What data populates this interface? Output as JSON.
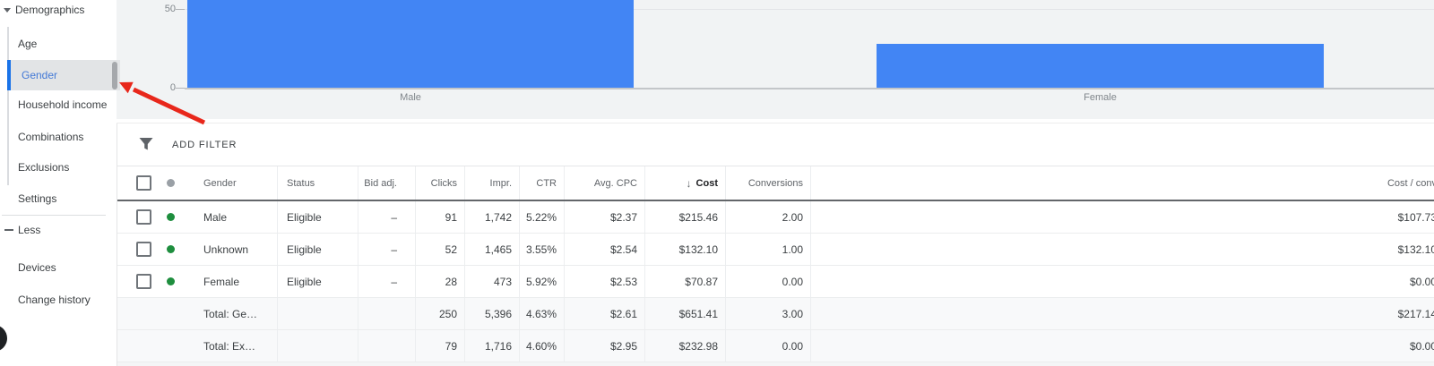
{
  "sidebar": {
    "section_label": "Demographics",
    "items": [
      {
        "label": "Age",
        "selected": false
      },
      {
        "label": "Gender",
        "selected": true
      },
      {
        "label": "Household income",
        "selected": false
      },
      {
        "label": "Combinations",
        "selected": false
      },
      {
        "label": "Exclusions",
        "selected": false
      },
      {
        "label": "Settings",
        "selected": false
      }
    ],
    "collapse_label": "Less",
    "extra_items": [
      {
        "label": "Devices"
      },
      {
        "label": "Change history"
      }
    ]
  },
  "chart_data": {
    "type": "bar",
    "title": "",
    "xlabel": "",
    "ylabel": "",
    "categories": [
      "Male",
      "Female"
    ],
    "values": [
      91,
      28
    ],
    "y_ticks_visible": [
      50,
      0
    ],
    "ylim_visible": [
      0,
      69
    ],
    "grid": true,
    "bar_color": "#4285f4",
    "note_male_bar_clipped_at_top": true
  },
  "filter_bar": {
    "label": "ADD FILTER",
    "icon": "filter-funnel-icon"
  },
  "table": {
    "columns": [
      {
        "id": "select",
        "label": ""
      },
      {
        "id": "status_dot",
        "label": ""
      },
      {
        "id": "gender",
        "label": "Gender"
      },
      {
        "id": "status",
        "label": "Status"
      },
      {
        "id": "bid_adj",
        "label": "Bid adj."
      },
      {
        "id": "clicks",
        "label": "Clicks"
      },
      {
        "id": "impr",
        "label": "Impr."
      },
      {
        "id": "ctr",
        "label": "CTR"
      },
      {
        "id": "avg_cpc",
        "label": "Avg. CPC"
      },
      {
        "id": "cost",
        "label": "Cost",
        "sorted": "desc"
      },
      {
        "id": "conversions",
        "label": "Conversions"
      },
      {
        "id": "cost_per_conv",
        "label": "Cost / conv"
      }
    ],
    "rows": [
      {
        "type": "data",
        "dot": "green",
        "gender": "Male",
        "status": "Eligible",
        "bid_adj": "–",
        "clicks": "91",
        "impr": "1,742",
        "ctr": "5.22%",
        "avg_cpc": "$2.37",
        "cost": "$215.46",
        "conversions": "2.00",
        "cost_per_conv": "$107.73"
      },
      {
        "type": "data",
        "dot": "green",
        "gender": "Unknown",
        "status": "Eligible",
        "bid_adj": "–",
        "clicks": "52",
        "impr": "1,465",
        "ctr": "3.55%",
        "avg_cpc": "$2.54",
        "cost": "$132.10",
        "conversions": "1.00",
        "cost_per_conv": "$132.10"
      },
      {
        "type": "data",
        "dot": "green",
        "gender": "Female",
        "status": "Eligible",
        "bid_adj": "–",
        "clicks": "28",
        "impr": "473",
        "ctr": "5.92%",
        "avg_cpc": "$2.53",
        "cost": "$70.87",
        "conversions": "0.00",
        "cost_per_conv": "$0.00"
      },
      {
        "type": "total",
        "gender": "Total: Ge…",
        "status": "",
        "bid_adj": "",
        "clicks": "250",
        "impr": "5,396",
        "ctr": "4.63%",
        "avg_cpc": "$2.61",
        "cost": "$651.41",
        "conversions": "3.00",
        "cost_per_conv": "$217.14"
      },
      {
        "type": "total",
        "gender": "Total: Ex…",
        "status": "",
        "bid_adj": "",
        "clicks": "79",
        "impr": "1,716",
        "ctr": "4.60%",
        "avg_cpc": "$2.95",
        "cost": "$232.98",
        "conversions": "0.00",
        "cost_per_conv": "$0.00"
      }
    ]
  },
  "annotations": {
    "red_arrow_points_to": "Gender"
  },
  "colors": {
    "accent_blue": "#1a73e8",
    "bar_blue": "#4285f4",
    "status_green": "#1e8e3e",
    "arrow_red": "#e8271b",
    "chart_bg": "#f1f3f4",
    "selected_item_bg": "#e2e4e6"
  }
}
